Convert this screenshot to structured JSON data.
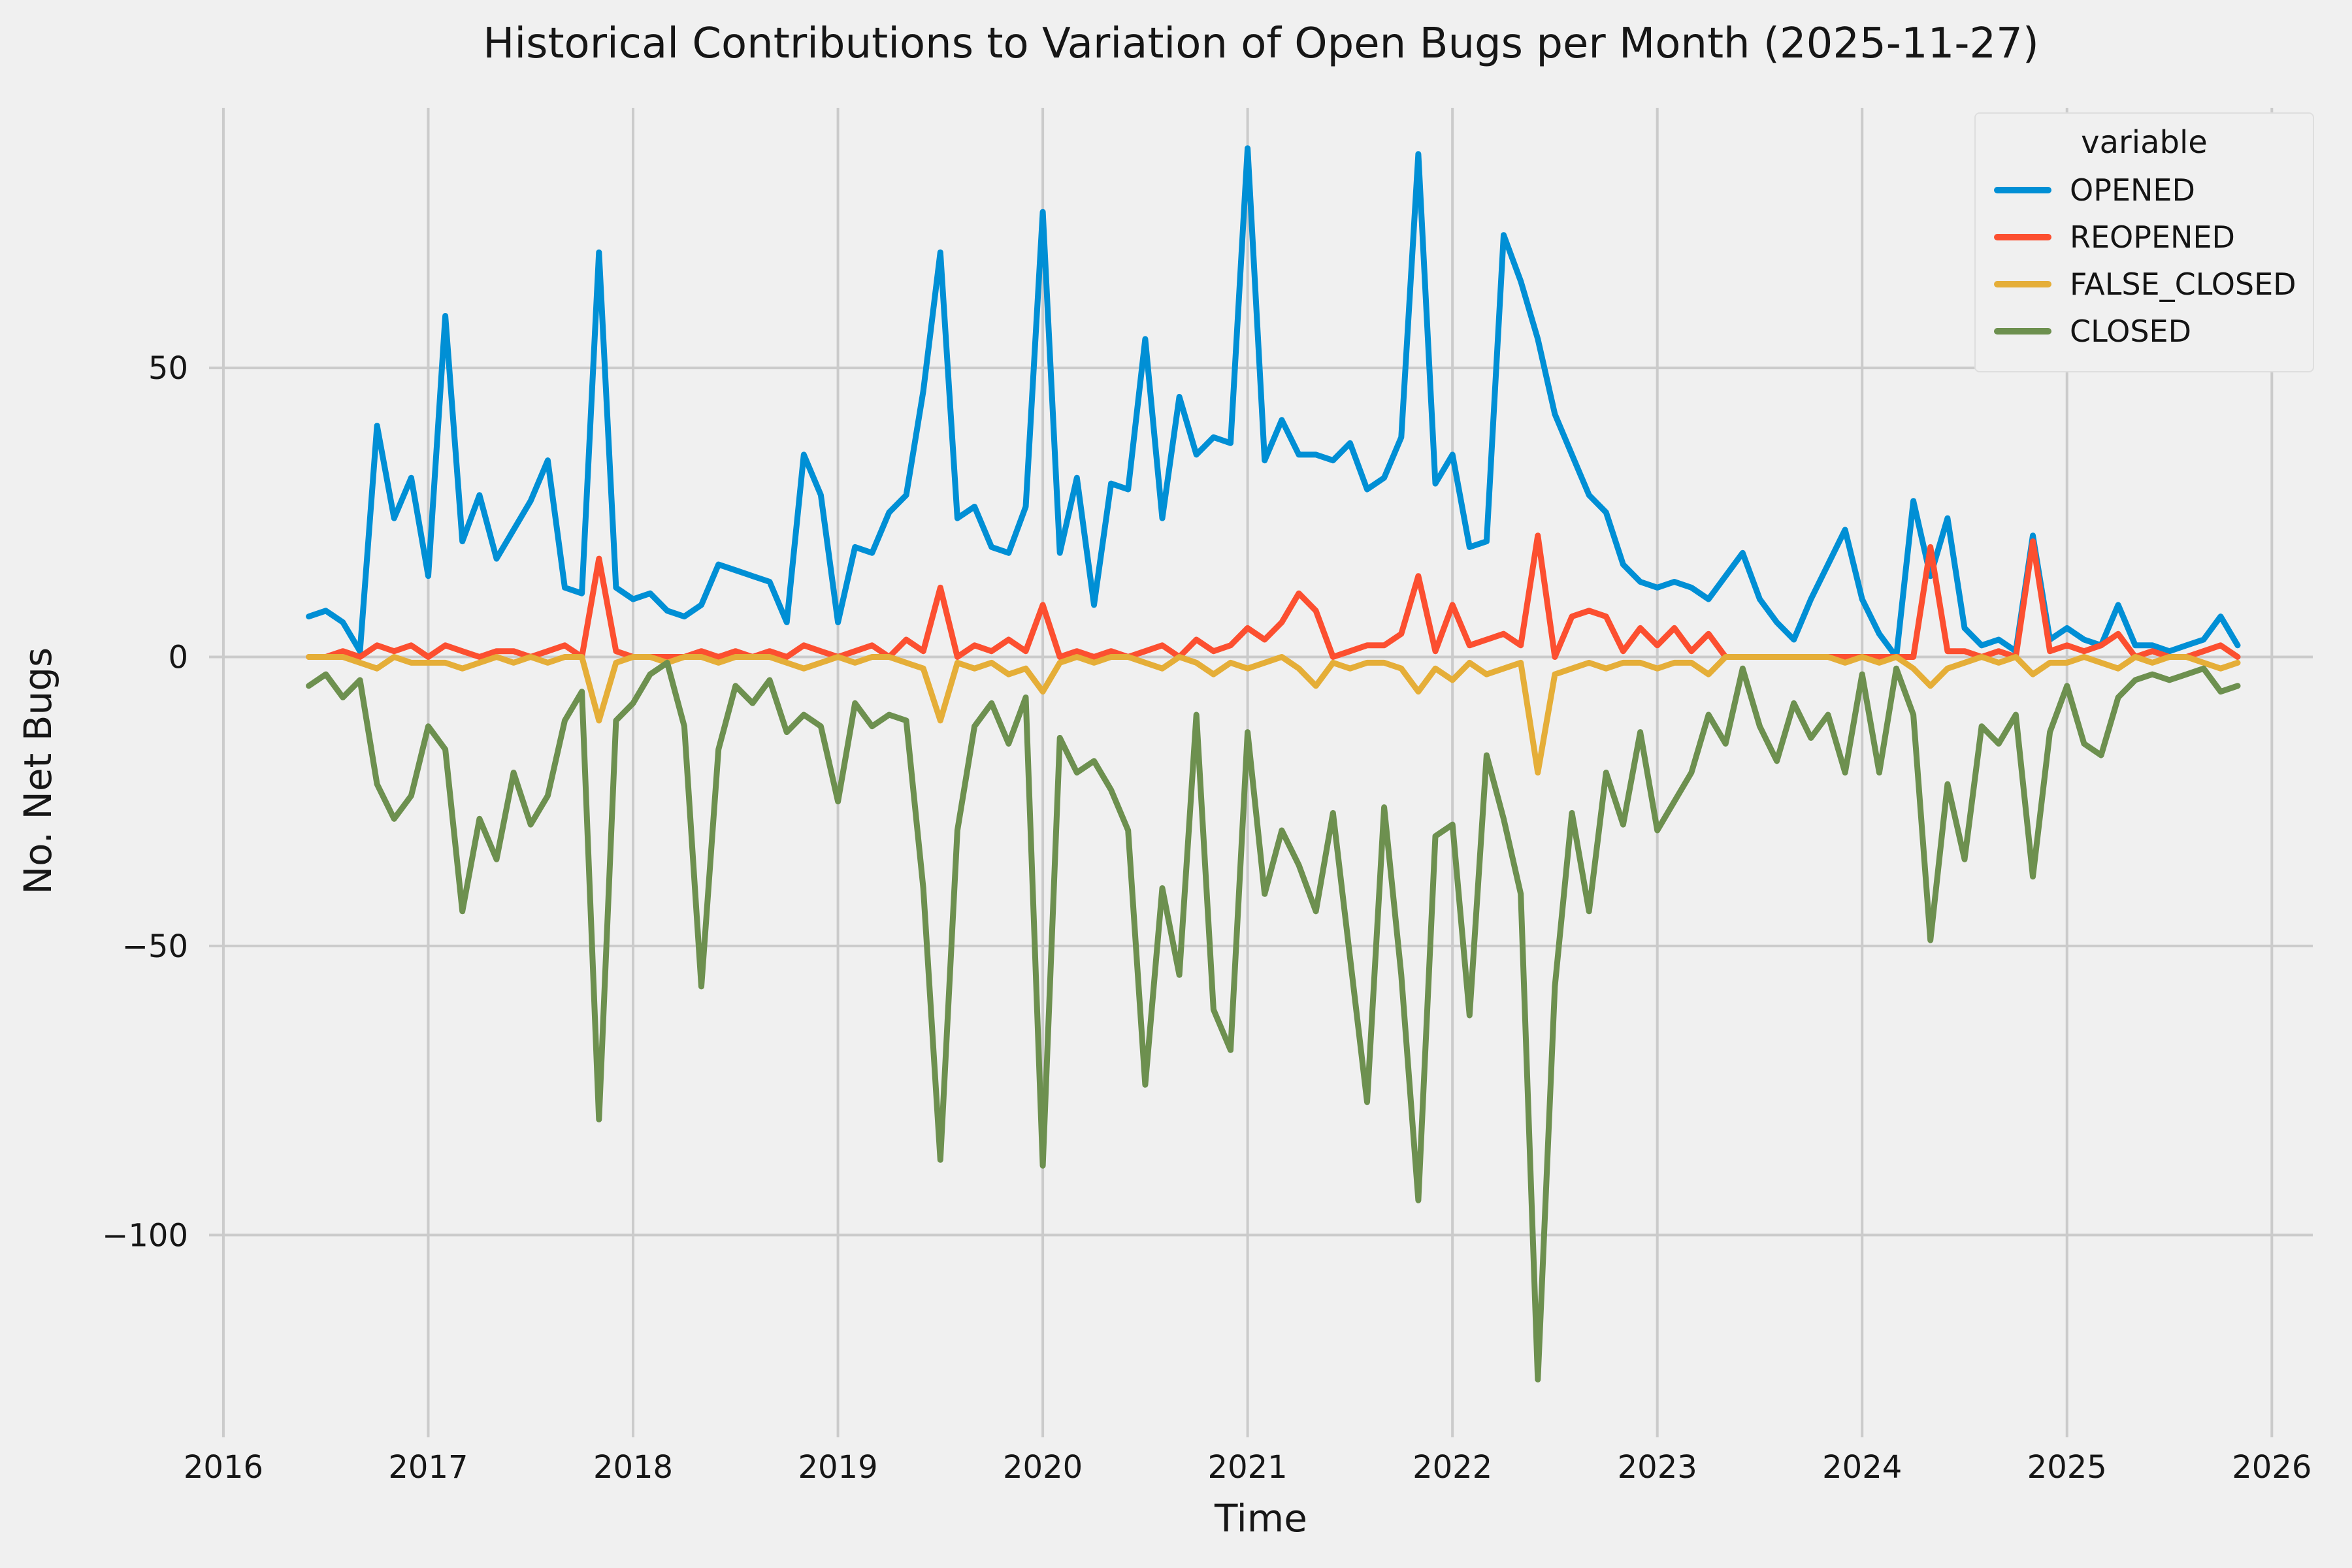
{
  "figure": {
    "background_color": "#f0f0f0",
    "gridline_color": "#cbcbcb",
    "text_color": "#161616"
  },
  "chart_data": {
    "type": "line",
    "title": "Historical Contributions to Variation of Open Bugs per Month (2025-11-27)",
    "xlabel": "Time",
    "ylabel": "No. Net Bugs",
    "legend_title": "variable",
    "legend_position": "upper right",
    "grid": true,
    "x_start": "2016-06",
    "x_freq": "monthly",
    "xlim": [
      2015.93,
      2026.2
    ],
    "ylim": [
      -135,
      95
    ],
    "xticks": [
      2016,
      2017,
      2018,
      2019,
      2020,
      2021,
      2022,
      2023,
      2024,
      2025,
      2026
    ],
    "yticks": [
      -100,
      -50,
      0,
      50
    ],
    "series": [
      {
        "name": "OPENED",
        "color": "#008fd5",
        "values": [
          7,
          8,
          6,
          1,
          40,
          24,
          31,
          14,
          59,
          20,
          28,
          17,
          22,
          27,
          34,
          12,
          11,
          70,
          12,
          10,
          11,
          8,
          7,
          9,
          16,
          15,
          14,
          13,
          6,
          35,
          28,
          6,
          19,
          18,
          25,
          28,
          46,
          70,
          24,
          26,
          19,
          18,
          26,
          77,
          18,
          31,
          9,
          30,
          29,
          55,
          24,
          45,
          35,
          38,
          37,
          88,
          34,
          41,
          35,
          35,
          34,
          37,
          29,
          31,
          38,
          87,
          30,
          35,
          19,
          20,
          73,
          65,
          55,
          42,
          35,
          28,
          25,
          16,
          13,
          12,
          13,
          12,
          10,
          14,
          18,
          10,
          6,
          3,
          10,
          16,
          22,
          10,
          4,
          0,
          27,
          14,
          24,
          5,
          2,
          3,
          1,
          21,
          3,
          5,
          3,
          2,
          9,
          2,
          2,
          1,
          2,
          3,
          7,
          2
        ]
      },
      {
        "name": "REOPENED",
        "color": "#fc4f30",
        "values": [
          0,
          0,
          1,
          0,
          2,
          1,
          2,
          0,
          2,
          1,
          0,
          1,
          1,
          0,
          1,
          2,
          0,
          17,
          1,
          0,
          0,
          0,
          0,
          1,
          0,
          1,
          0,
          1,
          0,
          2,
          1,
          0,
          1,
          2,
          0,
          3,
          1,
          12,
          0,
          2,
          1,
          3,
          1,
          9,
          0,
          1,
          0,
          1,
          0,
          1,
          2,
          0,
          3,
          1,
          2,
          5,
          3,
          6,
          11,
          8,
          0,
          1,
          2,
          2,
          4,
          14,
          1,
          9,
          2,
          3,
          4,
          2,
          21,
          0,
          7,
          8,
          7,
          1,
          5,
          2,
          5,
          1,
          4,
          0,
          0,
          0,
          0,
          0,
          0,
          0,
          0,
          0,
          0,
          0,
          0,
          19,
          1,
          1,
          0,
          1,
          0,
          20,
          1,
          2,
          1,
          2,
          4,
          0,
          1,
          0,
          0,
          1,
          2,
          0
        ]
      },
      {
        "name": "FALSE_CLOSED",
        "color": "#e5ae38",
        "values": [
          0,
          0,
          0,
          -1,
          -2,
          0,
          -1,
          -1,
          -1,
          -2,
          -1,
          0,
          -1,
          0,
          -1,
          0,
          0,
          -11,
          -1,
          0,
          0,
          -1,
          0,
          0,
          -1,
          0,
          0,
          0,
          -1,
          -2,
          -1,
          0,
          -1,
          0,
          0,
          -1,
          -2,
          -11,
          -1,
          -2,
          -1,
          -3,
          -2,
          -6,
          -1,
          0,
          -1,
          0,
          0,
          -1,
          -2,
          0,
          -1,
          -3,
          -1,
          -2,
          -1,
          0,
          -2,
          -5,
          -1,
          -2,
          -1,
          -1,
          -2,
          -6,
          -2,
          -4,
          -1,
          -3,
          -2,
          -1,
          -20,
          -3,
          -2,
          -1,
          -2,
          -1,
          -1,
          -2,
          -1,
          -1,
          -3,
          0,
          0,
          0,
          0,
          0,
          0,
          0,
          -1,
          0,
          -1,
          0,
          -2,
          -5,
          -2,
          -1,
          0,
          -1,
          0,
          -3,
          -1,
          -1,
          0,
          -1,
          -2,
          0,
          -1,
          0,
          0,
          -1,
          -2,
          -1
        ]
      },
      {
        "name": "CLOSED",
        "color": "#6d904f",
        "values": [
          -5,
          -3,
          -7,
          -4,
          -22,
          -28,
          -24,
          -12,
          -16,
          -44,
          -28,
          -35,
          -20,
          -29,
          -24,
          -11,
          -6,
          -80,
          -11,
          -8,
          -3,
          -1,
          -12,
          -57,
          -16,
          -5,
          -8,
          -4,
          -13,
          -10,
          -12,
          -25,
          -8,
          -12,
          -10,
          -11,
          -40,
          -87,
          -30,
          -12,
          -8,
          -15,
          -7,
          -88,
          -14,
          -20,
          -18,
          -23,
          -30,
          -74,
          -40,
          -55,
          -10,
          -61,
          -68,
          -13,
          -41,
          -30,
          -36,
          -44,
          -27,
          -52,
          -77,
          -26,
          -55,
          -94,
          -31,
          -29,
          -62,
          -17,
          -28,
          -41,
          -125,
          -57,
          -27,
          -44,
          -20,
          -29,
          -13,
          -30,
          -25,
          -20,
          -10,
          -15,
          -2,
          -12,
          -18,
          -8,
          -14,
          -10,
          -20,
          -3,
          -20,
          -2,
          -10,
          -49,
          -22,
          -35,
          -12,
          -15,
          -10,
          -38,
          -13,
          -5,
          -15,
          -17,
          -7,
          -4,
          -3,
          -4,
          -3,
          -2,
          -6,
          -5
        ]
      }
    ]
  }
}
